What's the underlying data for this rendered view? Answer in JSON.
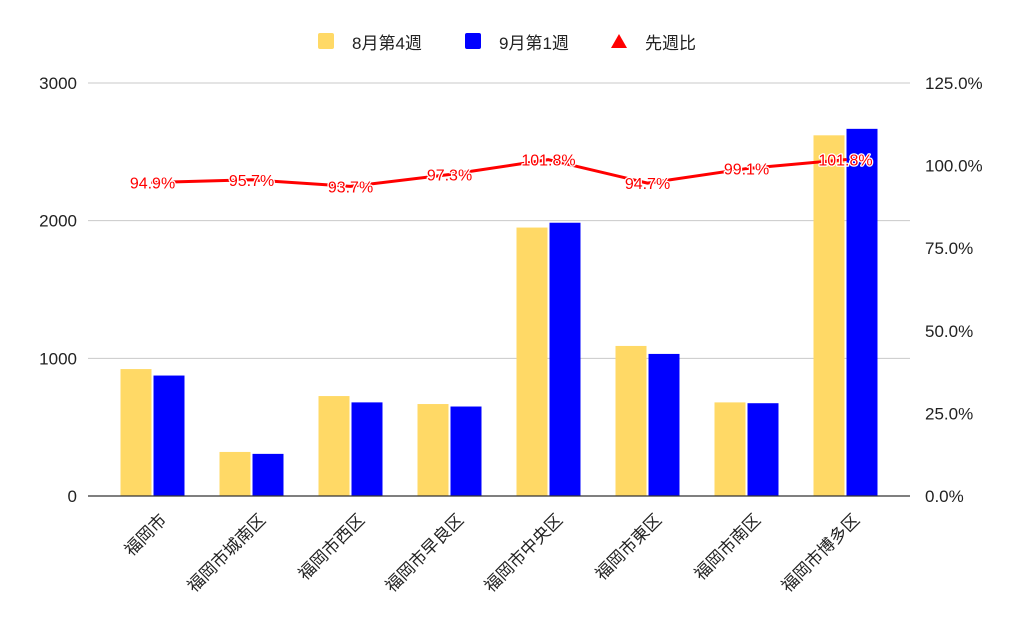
{
  "chart_data": {
    "type": "bar",
    "categories": [
      "福岡市",
      "福岡市城南区",
      "福岡市西区",
      "福岡市早良区",
      "福岡市中央区",
      "福岡市東区",
      "福岡市南区",
      "福岡市博多区"
    ],
    "series": [
      {
        "name": "8月第4週",
        "type": "bar",
        "axis": "left",
        "color": "#FFD966",
        "legend_icon": "square",
        "values": [
          922,
          320,
          726,
          668,
          1950,
          1090,
          680,
          2620
        ]
      },
      {
        "name": "9月第1週",
        "type": "bar",
        "axis": "left",
        "color": "#0000FF",
        "legend_icon": "square",
        "values": [
          875,
          306,
          680,
          650,
          1985,
          1032,
          674,
          2667
        ]
      },
      {
        "name": "先週比",
        "type": "line",
        "axis": "right",
        "color": "#FF0000",
        "legend_icon": "triangle",
        "values": [
          94.9,
          95.7,
          93.7,
          97.3,
          101.8,
          94.7,
          99.1,
          101.8
        ],
        "data_labels": [
          "94.9%",
          "95.7%",
          "93.7%",
          "97.3%",
          "101.8%",
          "94.7%",
          "99.1%",
          "101.8%"
        ]
      }
    ],
    "y_left": {
      "ylim": [
        0,
        3000
      ],
      "ticks": [
        0,
        1000,
        2000,
        3000
      ],
      "tick_labels": [
        "0",
        "1000",
        "2000",
        "3000"
      ]
    },
    "y_right": {
      "ylim": [
        0,
        125
      ],
      "ticks": [
        0,
        25,
        50,
        75,
        100,
        125
      ],
      "tick_labels": [
        "0.0%",
        "25.0%",
        "50.0%",
        "75.0%",
        "100.0%",
        "125.0%"
      ]
    },
    "grid": true,
    "legend_position": "top"
  }
}
